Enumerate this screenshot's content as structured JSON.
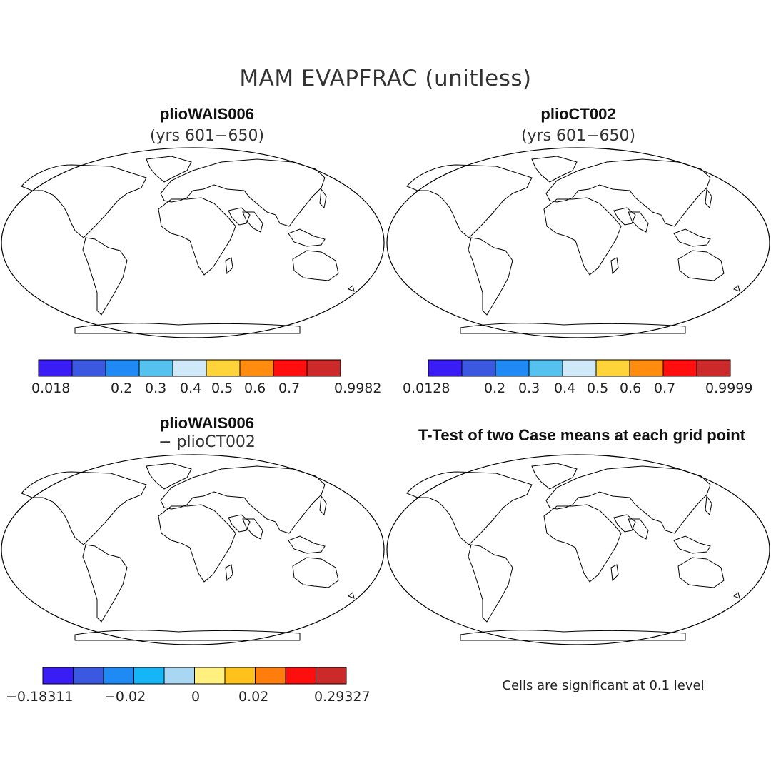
{
  "figure": {
    "title": "MAM EVAPFRAC (unitless)",
    "panels": [
      {
        "id": "tl",
        "title": "plioWAIS006",
        "subtitle": "(yrs 601−650)"
      },
      {
        "id": "tr",
        "title": "plioCT002",
        "subtitle": "(yrs 601−650)"
      },
      {
        "id": "bl",
        "title": "plioWAIS006",
        "subtitle": "− plioCT002"
      },
      {
        "id": "br",
        "title": "T-Test of two Case means at each grid point",
        "subtitle": ""
      }
    ],
    "footnote": "Cells are significant at 0.1 level"
  },
  "colorbars": [
    {
      "id": "cb1",
      "colors": [
        "#3a1cf5",
        "#3b58e0",
        "#1f8af3",
        "#54c1ef",
        "#cfe9f9",
        "#ffd33a",
        "#ff8c0e",
        "#ff0e0e",
        "#cc2a2a"
      ],
      "tick_labels": [
        "0.018",
        "0.2",
        "0.3",
        "0.4",
        "0.5",
        "0.6",
        "0.7",
        "0.9982"
      ]
    },
    {
      "id": "cb2",
      "colors": [
        "#3a1cf5",
        "#3b58e0",
        "#1f8af3",
        "#54c1ef",
        "#cfe9f9",
        "#ffd33a",
        "#ff8c0e",
        "#ff0e0e",
        "#cc2a2a"
      ],
      "tick_labels": [
        "0.0128",
        "0.2",
        "0.3",
        "0.4",
        "0.5",
        "0.6",
        "0.7",
        "0.9999"
      ]
    },
    {
      "id": "cb3",
      "colors": [
        "#3a1cf5",
        "#3b58e0",
        "#1f8af3",
        "#16b5f6",
        "#a8d6f3",
        "#fff07f",
        "#ffc21d",
        "#ff7d0d",
        "#ff0e0e",
        "#cc2a2a"
      ],
      "tick_labels": [
        "−0.18311",
        "−0.02",
        "0",
        "0.02",
        "0.29327"
      ]
    }
  ],
  "colors": {
    "ttest_significant": "#ff0000",
    "coastline": "#000000"
  }
}
